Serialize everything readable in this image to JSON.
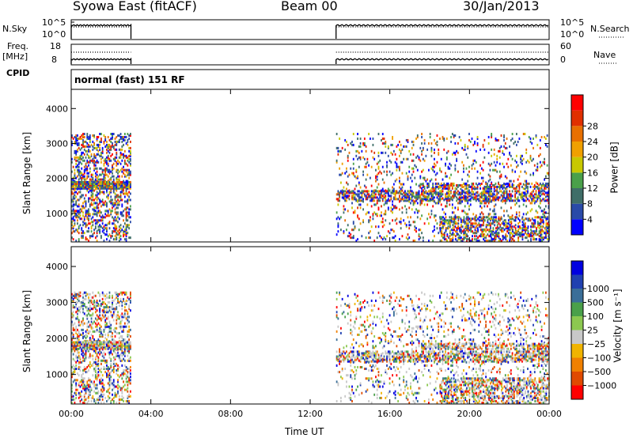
{
  "header": {
    "station": "Syowa East (fitACF)",
    "beam": "Beam 00",
    "date": "30/Jan/2013"
  },
  "left_labels": {
    "nsky": "N.Sky",
    "freq": "Freq.",
    "freq_unit": "[MHz]",
    "cpid": "CPID"
  },
  "right_labels": {
    "nsearch": "N.Search",
    "nave": "Nave"
  },
  "cpid_text": "normal (fast) 151 RF",
  "noise_axis": {
    "left_ticks": [
      "10^5",
      "10^0"
    ],
    "right_ticks": [
      "10^5",
      "10^0"
    ]
  },
  "freq_axis": {
    "left_ticks": [
      "18",
      "8"
    ],
    "right_ticks": [
      "60",
      "0"
    ]
  },
  "colors": {
    "power": [
      "#0000ff",
      "#2a4aa8",
      "#3f6e68",
      "#4aa04a",
      "#c8c800",
      "#f0a000",
      "#e87000",
      "#e03000",
      "#ff0000"
    ],
    "velocity": [
      "#ff0000",
      "#e04a00",
      "#f08000",
      "#f0b400",
      "#c8c8c8",
      "#8cc850",
      "#4aa04a",
      "#3a6e98",
      "#2040b0",
      "#0000e0"
    ]
  },
  "chart_data": [
    {
      "type": "heatmap",
      "name": "power",
      "ylabel": "Slant Range [km]",
      "xlabel": "",
      "yticks": [
        "1000",
        "2000",
        "3000",
        "4000"
      ],
      "ylim": [
        180,
        4550
      ],
      "xlim": [
        0,
        24
      ],
      "colorbar_label": "Power [dB]",
      "colorbar_ticks": [
        "4",
        "8",
        "12",
        "16",
        "20",
        "24",
        "28"
      ],
      "data_gap_ut": [
        3.0,
        13.3
      ]
    },
    {
      "type": "heatmap",
      "name": "velocity",
      "ylabel": "Slant Range [km]",
      "xlabel": "Time UT",
      "xticks": [
        "00:00",
        "04:00",
        "08:00",
        "12:00",
        "16:00",
        "20:00",
        "00:00"
      ],
      "yticks": [
        "1000",
        "2000",
        "3000",
        "4000"
      ],
      "ylim": [
        180,
        4550
      ],
      "xlim": [
        0,
        24
      ],
      "colorbar_label": "Velocity [m s⁻¹]",
      "colorbar_ticks": [
        "1000",
        "500",
        "100",
        "25",
        "−25",
        "−100",
        "−500",
        "−1000"
      ],
      "data_gap_ut": [
        3.0,
        13.3
      ]
    }
  ]
}
